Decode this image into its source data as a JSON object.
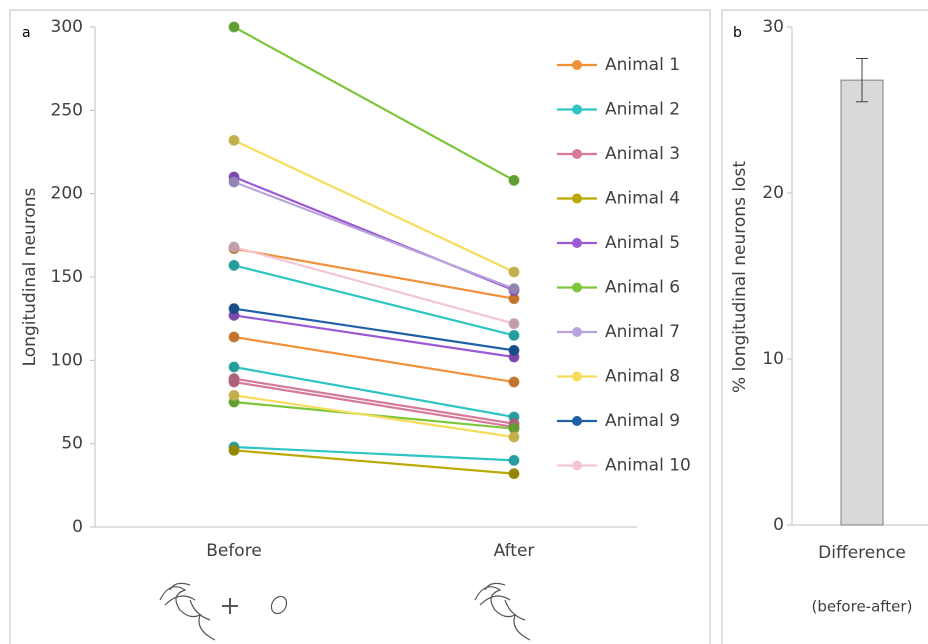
{
  "chart_data": [
    {
      "type": "line",
      "panel_label": "a",
      "y_label": "Longitudinal neurons",
      "categories": [
        "Before",
        "After"
      ],
      "ylim": [
        0,
        300
      ],
      "yticks": [
        0,
        50,
        100,
        150,
        200,
        250,
        300
      ],
      "series": [
        {
          "name": "Animal 1",
          "color": "#f0913a",
          "lines": [
            [
              167,
              137
            ],
            [
              114,
              87
            ]
          ]
        },
        {
          "name": "Animal 2",
          "color": "#2ec4c4",
          "lines": [
            [
              157,
              115
            ],
            [
              96,
              66
            ],
            [
              48,
              40
            ]
          ]
        },
        {
          "name": "Animal 3",
          "color": "#d67a96",
          "lines": [
            [
              89,
              62
            ],
            [
              87,
              60
            ]
          ]
        },
        {
          "name": "Animal 4",
          "color": "#b8a800",
          "lines": [
            [
              46,
              32
            ]
          ]
        },
        {
          "name": "Animal 5",
          "color": "#9b59d6",
          "lines": [
            [
              210,
              142
            ],
            [
              127,
              102
            ]
          ]
        },
        {
          "name": "Animal 6",
          "color": "#7cc63c",
          "lines": [
            [
              300,
              208
            ],
            [
              75,
              59
            ]
          ]
        },
        {
          "name": "Animal 7",
          "color": "#b9a3dc",
          "lines": [
            [
              207,
              143
            ]
          ]
        },
        {
          "name": "Animal 8",
          "color": "#f5dc5a",
          "lines": [
            [
              232,
              153
            ],
            [
              79,
              54
            ]
          ]
        },
        {
          "name": "Animal 9",
          "color": "#1f5fa6",
          "lines": [
            [
              131,
              106
            ]
          ]
        },
        {
          "name": "Animal 10",
          "color": "#f2c6d6",
          "lines": [
            [
              168,
              122
            ]
          ]
        }
      ]
    },
    {
      "type": "bar",
      "panel_label": "b",
      "y_label": "% longitudinal neurons lost",
      "categories": [
        "Difference"
      ],
      "x_label": "(before-after)",
      "values": [
        26.8
      ],
      "errors": [
        1.3
      ],
      "color": "#d9d9d9",
      "ylim": [
        0,
        30
      ],
      "yticks": [
        0,
        10,
        20,
        30
      ]
    }
  ]
}
